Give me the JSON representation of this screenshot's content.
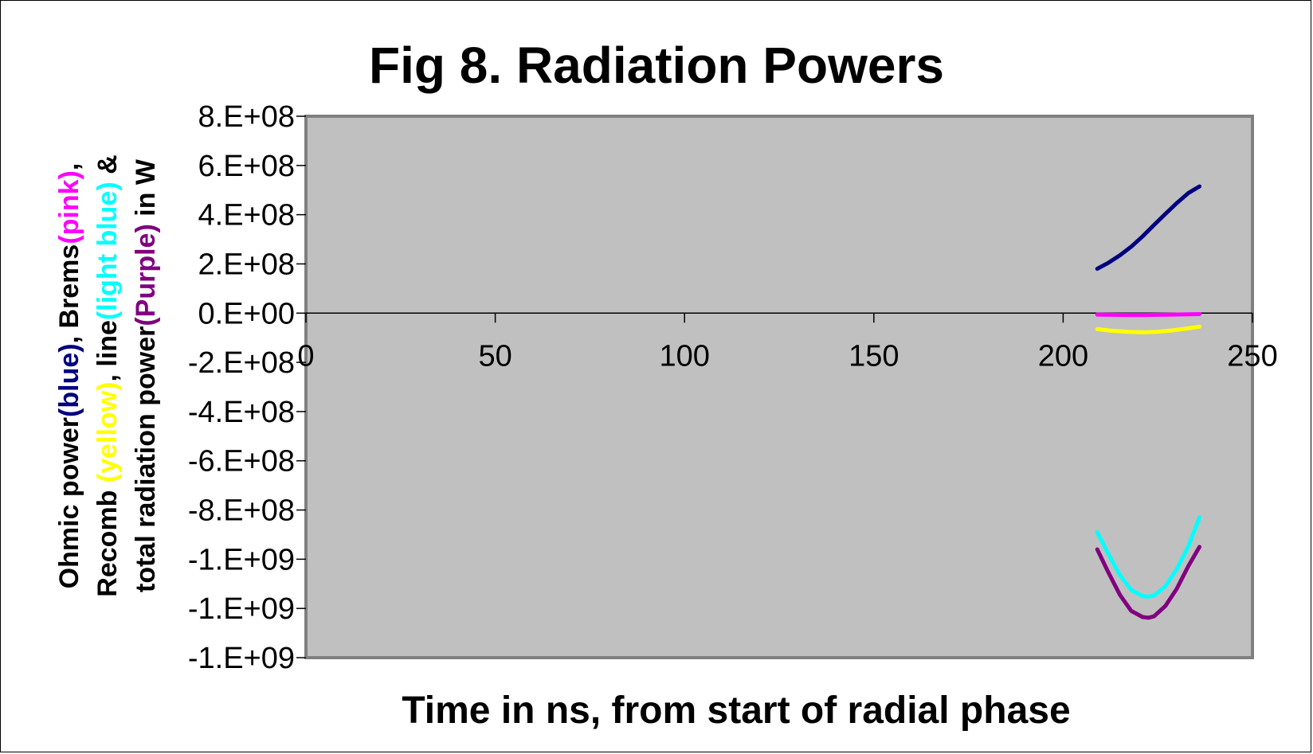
{
  "chart_data": {
    "type": "line",
    "title": "Fig 8. Radiation Powers",
    "xlabel": "Time in ns, from start of radial phase",
    "ylabel_lines": [
      [
        {
          "text": "Ohmic power",
          "color": "#000000"
        },
        {
          "text": "(blue)",
          "color": "#000080"
        },
        {
          "text": ",  Brems",
          "color": "#000000"
        },
        {
          "text": "(pink)",
          "color": "#ff00ff"
        },
        {
          "text": ",",
          "color": "#000000"
        }
      ],
      [
        {
          "text": "Recomb ",
          "color": "#000000"
        },
        {
          "text": "(yellow)",
          "color": "#ffff00"
        },
        {
          "text": ",  line",
          "color": "#000000"
        },
        {
          "text": "(light blue)",
          "color": "#00ffff"
        },
        {
          "text": " &",
          "color": "#000000"
        }
      ],
      [
        {
          "text": "total radiation power",
          "color": "#000000"
        },
        {
          "text": "(Purple)",
          "color": "#800080"
        },
        {
          "text": " in W",
          "color": "#000000"
        }
      ]
    ],
    "xlim": [
      0,
      250
    ],
    "ylim": [
      -1400000000,
      800000000
    ],
    "x_ticks": [
      0,
      50,
      100,
      150,
      200,
      250
    ],
    "x_tick_labels": [
      "0",
      "50",
      "100",
      "150",
      "200",
      "250"
    ],
    "y_ticks": [
      800000000,
      600000000,
      400000000,
      200000000,
      0,
      -200000000,
      -400000000,
      -600000000,
      -800000000,
      -1000000000,
      -1200000000,
      -1400000000
    ],
    "y_tick_labels": [
      "8.E+08",
      "6.E+08",
      "4.E+08",
      "2.E+08",
      "0.E+00",
      "-2.E+08",
      "-4.E+08",
      "-6.E+08",
      "-8.E+08",
      "-1.E+09",
      "-1.E+09",
      "-1.E+09"
    ],
    "plot_background": "#c0c0c0",
    "grid": false,
    "legend": "none",
    "series": [
      {
        "color": "#000080",
        "x": [
          209,
          212,
          215,
          218,
          221,
          224,
          227,
          230,
          233,
          236
        ],
        "y": [
          180000000,
          205000000,
          235000000,
          270000000,
          312000000,
          358000000,
          403000000,
          447000000,
          487000000,
          515000000
        ]
      },
      {
        "color": "#ff00ff",
        "x": [
          209,
          213,
          217,
          221,
          225,
          229,
          233,
          236
        ],
        "y": [
          -6000000,
          -7000000,
          -7500000,
          -7500000,
          -7000000,
          -6000000,
          -5000000,
          -4000000
        ]
      },
      {
        "color": "#ffff00",
        "x": [
          209,
          213,
          217,
          221,
          225,
          229,
          233,
          236
        ],
        "y": [
          -65000000,
          -72000000,
          -76000000,
          -78000000,
          -76000000,
          -70000000,
          -62000000,
          -55000000
        ]
      },
      {
        "color": "#00ffff",
        "x": [
          209,
          212,
          215,
          218,
          221,
          222.5,
          224,
          227,
          230,
          233,
          236
        ],
        "y": [
          -890000000,
          -980000000,
          -1065000000,
          -1125000000,
          -1150000000,
          -1152000000,
          -1148000000,
          -1110000000,
          -1040000000,
          -950000000,
          -830000000
        ]
      },
      {
        "color": "#800080",
        "x": [
          209,
          212,
          215,
          218,
          221,
          222.5,
          224,
          227,
          230,
          233,
          236
        ],
        "y": [
          -960000000,
          -1055000000,
          -1145000000,
          -1210000000,
          -1235000000,
          -1238000000,
          -1232000000,
          -1190000000,
          -1120000000,
          -1030000000,
          -950000000
        ]
      }
    ]
  }
}
